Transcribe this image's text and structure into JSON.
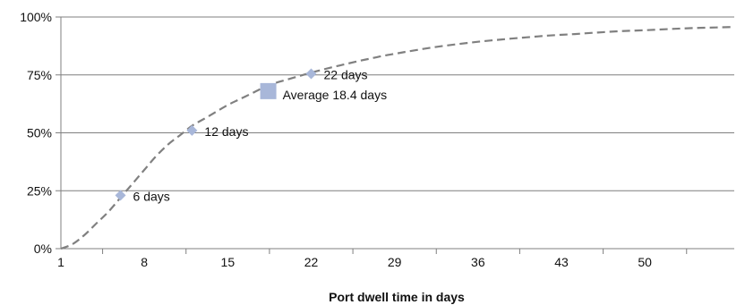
{
  "chart_data": {
    "type": "line",
    "title": "",
    "xlabel": "Port dwell time in days",
    "ylabel": "",
    "xlim": [
      1,
      57.5
    ],
    "ylim": [
      0,
      100
    ],
    "x_ticks": [
      1,
      8,
      15,
      22,
      29,
      36,
      43,
      50
    ],
    "y_ticks": [
      {
        "value": 0,
        "label": "0%"
      },
      {
        "value": 25,
        "label": "25%"
      },
      {
        "value": 50,
        "label": "50%"
      },
      {
        "value": 75,
        "label": "75%"
      },
      {
        "value": 100,
        "label": "100%"
      }
    ],
    "grid": "horizontal",
    "series": [
      {
        "style": "dashed",
        "color": "#808080",
        "x": [
          1,
          2,
          3,
          4,
          5,
          6,
          7,
          8,
          9,
          10,
          11,
          12,
          13,
          14,
          15,
          16,
          17,
          18,
          19,
          20,
          21,
          22,
          23,
          24,
          25,
          26,
          27,
          28,
          29,
          30,
          32,
          34,
          36,
          38,
          40,
          42,
          44,
          46,
          48,
          50,
          52,
          54,
          56,
          57.5
        ],
        "y": [
          0,
          2,
          6,
          11,
          16,
          22,
          28,
          34,
          40,
          45,
          49,
          53,
          56,
          59,
          62,
          64.5,
          67,
          69.5,
          71.5,
          73,
          74.5,
          76,
          77.3,
          78.6,
          79.8,
          81,
          82.1,
          83.2,
          84.1,
          85,
          86.7,
          88.1,
          89.3,
          90.3,
          91.2,
          92,
          92.6,
          93.3,
          93.9,
          94.3,
          94.8,
          95.2,
          95.5,
          95.7
        ]
      }
    ],
    "points": [
      {
        "x": 6,
        "y": 23,
        "label": "6 days",
        "marker": "diamond"
      },
      {
        "x": 12,
        "y": 51,
        "label": "12 days",
        "marker": "diamond"
      },
      {
        "x": 22,
        "y": 75.5,
        "label": "22 days",
        "marker": "diamond"
      },
      {
        "x": 18.4,
        "y": 68,
        "label": "Average 18.4 days",
        "marker": "square"
      }
    ],
    "colors": {
      "line": "#808080",
      "marker": "#a8b7d9",
      "grid": "#7f7f7f",
      "axis": "#7f7f7f"
    }
  }
}
